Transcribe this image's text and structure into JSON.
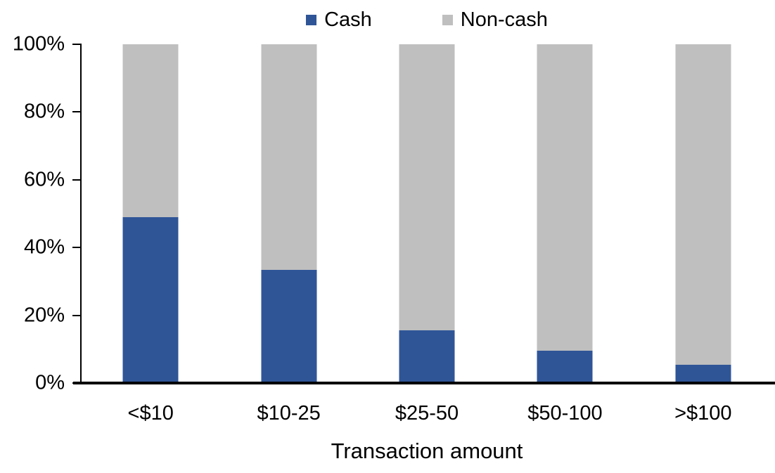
{
  "chart_data": {
    "type": "bar",
    "stacked": true,
    "title": "",
    "xlabel": "Transaction amount",
    "ylabel": "",
    "categories": [
      "<$10",
      "$10-25",
      "$25-50",
      "$50-100",
      ">$100"
    ],
    "series": [
      {
        "name": "Cash",
        "color": "#2F5597",
        "values": [
          49,
          33.5,
          15.5,
          9.5,
          5.5
        ]
      },
      {
        "name": "Non-cash",
        "color": "#BFBFBF",
        "values": [
          51,
          66.5,
          84.5,
          90.5,
          94.5
        ]
      }
    ],
    "ylim": [
      0,
      100
    ],
    "y_ticks": [
      "0%",
      "20%",
      "40%",
      "60%",
      "80%",
      "100%"
    ],
    "grid": false,
    "legend_position": "top-center"
  },
  "colors": {
    "axis": "#000000",
    "text": "#000000",
    "background": "#FFFFFF"
  }
}
